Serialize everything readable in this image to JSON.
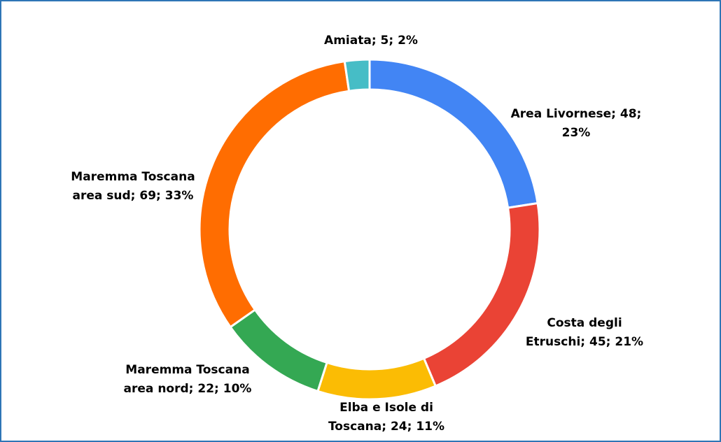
{
  "chart_data": {
    "type": "donut",
    "values": [
      48,
      45,
      24,
      22,
      69,
      5
    ],
    "value_labels": [
      [
        "Area Livornese; 48;",
        "23%"
      ],
      [
        "Costa degli",
        "Etruschi; 45; 21%"
      ],
      [
        "Elba e Isole di",
        "Toscana; 24; 11%"
      ],
      [
        "Maremma Toscana",
        "area nord; 22; 10%"
      ],
      [
        "Maremma Toscana",
        "area sud; 69; 33%"
      ],
      [
        "Amiata; 5; 2%"
      ]
    ],
    "colors": [
      "#4285f4",
      "#ea4335",
      "#fbbc04",
      "#34a853",
      "#ff6d01",
      "#46bdc6"
    ]
  }
}
